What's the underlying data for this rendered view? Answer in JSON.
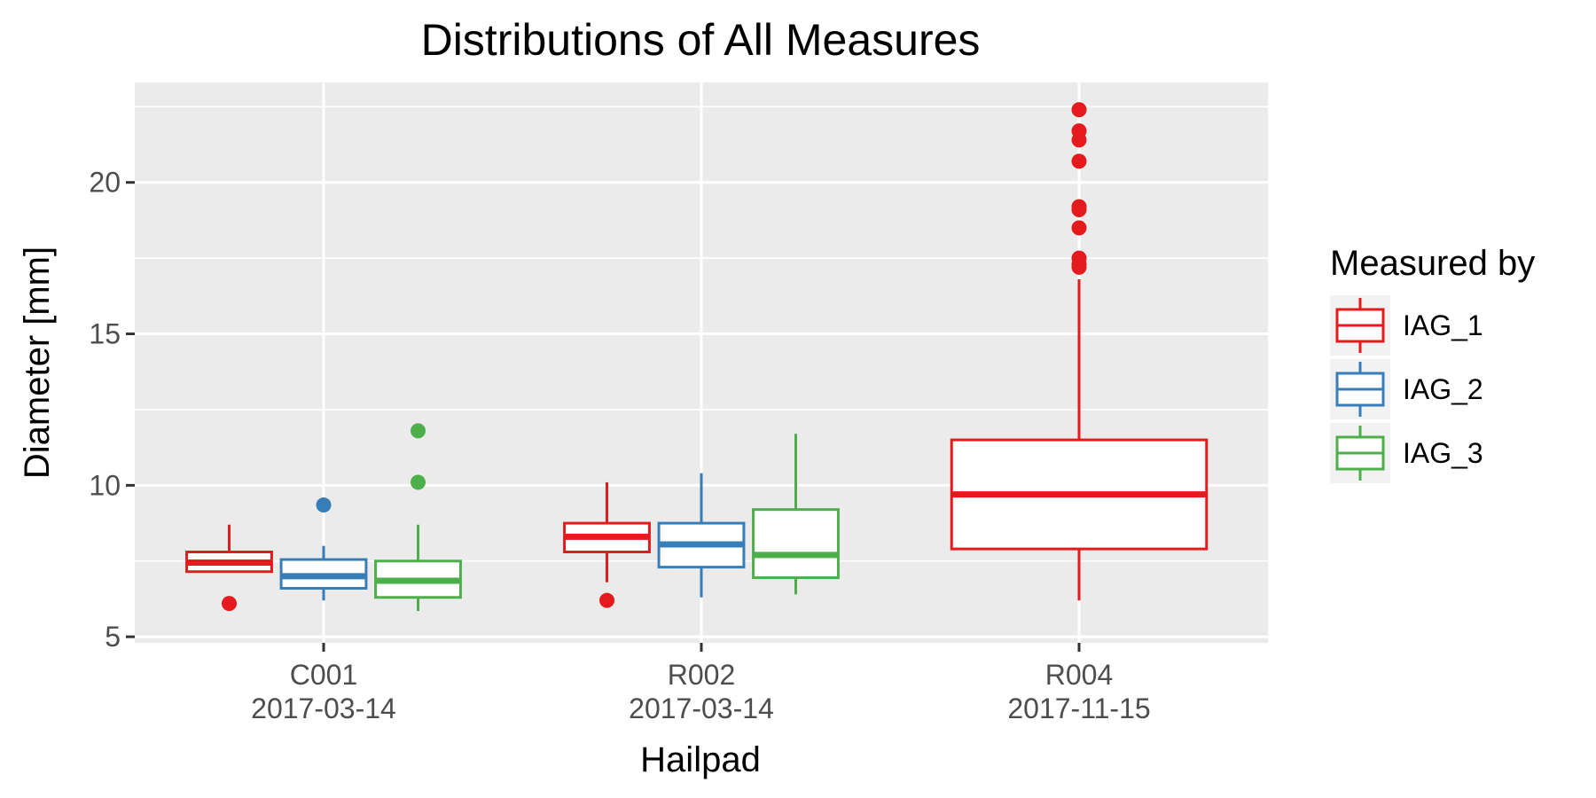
{
  "chart_data": {
    "type": "boxplot",
    "title": "Distributions of All Measures",
    "xlabel": "Hailpad",
    "ylabel": "Diameter [mm]",
    "ylim": [
      4.8,
      23.3
    ],
    "yticks": [
      5,
      10,
      15,
      20
    ],
    "grid": true,
    "legend": {
      "title": "Measured by",
      "position": "right",
      "entries": [
        "IAG_1",
        "IAG_2",
        "IAG_3"
      ]
    },
    "categories": [
      {
        "id": "C001",
        "date": "2017-03-14"
      },
      {
        "id": "R002",
        "date": "2017-03-14"
      },
      {
        "id": "R004",
        "date": "2017-11-15"
      }
    ],
    "series": [
      {
        "name": "IAG_1",
        "color": "#e41a1c",
        "boxes": [
          {
            "category": "C001",
            "whisker_low": 7.15,
            "q1": 7.15,
            "median": 7.45,
            "q3": 7.8,
            "whisker_high": 8.7,
            "outliers": [
              6.1
            ]
          },
          {
            "category": "R002",
            "whisker_low": 6.8,
            "q1": 7.8,
            "median": 8.3,
            "q3": 8.75,
            "whisker_high": 10.1,
            "outliers": [
              6.2
            ]
          },
          {
            "category": "R004",
            "whisker_low": 6.2,
            "q1": 7.9,
            "median": 9.7,
            "q3": 11.5,
            "whisker_high": 16.8,
            "outliers": [
              17.2,
              17.3,
              17.5,
              18.5,
              19.1,
              19.2,
              20.7,
              21.4,
              21.7,
              22.4
            ]
          }
        ]
      },
      {
        "name": "IAG_2",
        "color": "#377eb8",
        "boxes": [
          {
            "category": "C001",
            "whisker_low": 6.2,
            "q1": 6.6,
            "median": 7.0,
            "q3": 7.55,
            "whisker_high": 8.0,
            "outliers": [
              9.35
            ]
          },
          {
            "category": "R002",
            "whisker_low": 6.3,
            "q1": 7.3,
            "median": 8.05,
            "q3": 8.75,
            "whisker_high": 10.4,
            "outliers": []
          }
        ]
      },
      {
        "name": "IAG_3",
        "color": "#4daf4a",
        "boxes": [
          {
            "category": "C001",
            "whisker_low": 5.85,
            "q1": 6.3,
            "median": 6.85,
            "q3": 7.5,
            "whisker_high": 8.7,
            "outliers": [
              10.1,
              11.8
            ]
          },
          {
            "category": "R002",
            "whisker_low": 6.4,
            "q1": 6.95,
            "median": 7.7,
            "q3": 9.2,
            "whisker_high": 11.7,
            "outliers": []
          }
        ]
      }
    ]
  }
}
